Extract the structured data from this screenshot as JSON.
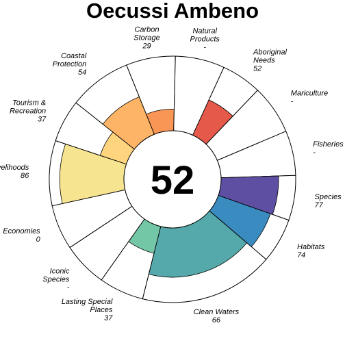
{
  "chart_data": {
    "type": "flower",
    "title": "Oecussi Ambeno",
    "center_score": "52",
    "max_value": 100,
    "colors": {
      "outline": "#000000",
      "background": "#ffffff"
    },
    "petals": [
      {
        "label": "Fisheries",
        "value_text": "-",
        "value": null,
        "weight": 1,
        "color": "#7f3d99"
      },
      {
        "label": "Species",
        "value_text": "77",
        "value": 77,
        "weight": 1,
        "color": "#5e4fa2"
      },
      {
        "label": "Habitats",
        "value_text": "74",
        "value": 74,
        "weight": 1,
        "color": "#3a8bbf"
      },
      {
        "label": "Clean Waters",
        "value_text": "66",
        "value": 66,
        "weight": 3,
        "color": "#56a9aa"
      },
      {
        "label": "Lasting Special Places",
        "value_text": "37",
        "value": 37,
        "weight": 1,
        "color": "#73c7a6"
      },
      {
        "label": "Iconic Species",
        "value_text": "-",
        "value": null,
        "weight": 1,
        "color": "#a9dba4"
      },
      {
        "label": "Economies",
        "value_text": "0",
        "value": 0,
        "weight": 1,
        "color": "#d9ef9b"
      },
      {
        "label": "Livelihoods",
        "value_text": "86",
        "value": 86,
        "weight": 1.45,
        "color": "#f6e490"
      },
      {
        "label": "Tourism & Recreation",
        "value_text": "37",
        "value": 37,
        "weight": 0.95,
        "color": "#fed47f"
      },
      {
        "label": "Coastal Protection",
        "value_text": "54",
        "value": 54,
        "weight": 1.4,
        "color": "#fdb466"
      },
      {
        "label": "Carbon Storage",
        "value_text": "29",
        "value": 29,
        "weight": 1.1,
        "color": "#f99655"
      },
      {
        "label": "Natural Products",
        "value_text": "-",
        "value": null,
        "weight": 1.1,
        "color": "#f46d43"
      },
      {
        "label": "Aboriginal Needs",
        "value_text": "52",
        "value": 52,
        "weight": 0.9,
        "color": "#e45949"
      },
      {
        "label": "Mariculture",
        "value_text": "-",
        "value": null,
        "weight": 1.1,
        "color": "#d53e4f"
      }
    ]
  }
}
